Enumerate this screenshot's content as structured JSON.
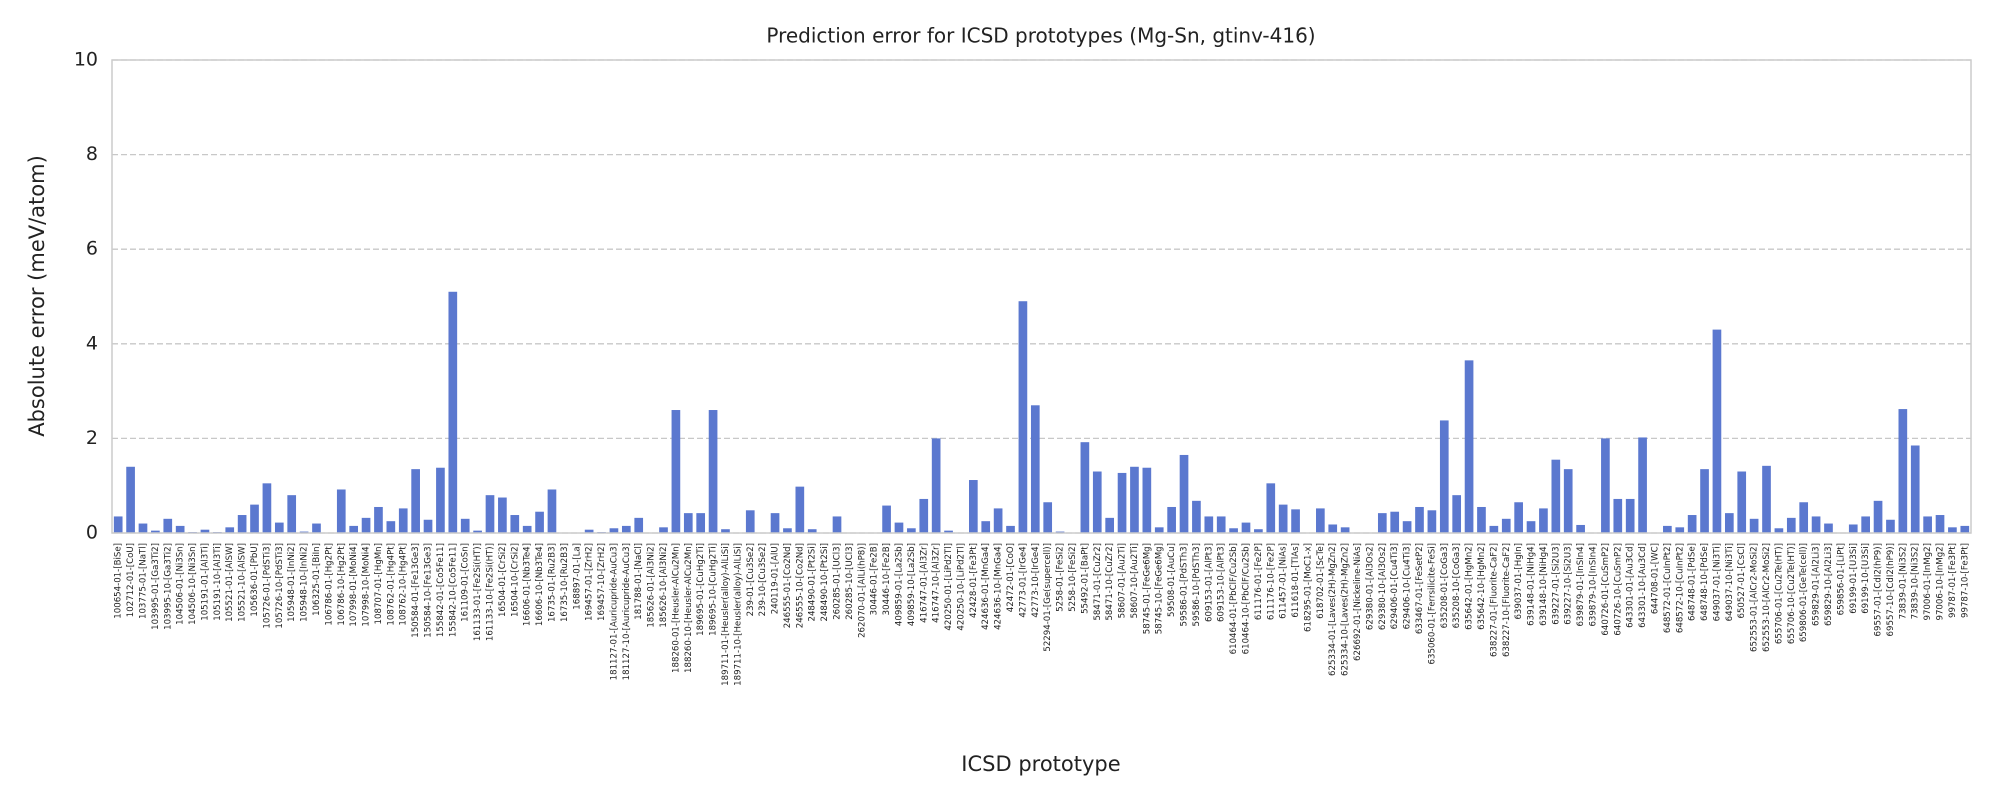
{
  "chart_data": {
    "type": "bar",
    "title": "Prediction error for ICSD prototypes (Mg-Sn, gtinv-416)",
    "xlabel": "ICSD prototype",
    "ylabel": "Absolute error (meV/atom)",
    "color": "#5b78cf",
    "ylim": [
      0,
      10
    ],
    "yticks": [
      0,
      2,
      4,
      6,
      8,
      10
    ],
    "grid": true,
    "categories": [
      "100654-01-[BiSe]",
      "102712-01-[CoU]",
      "103775-01-[NaTl]",
      "103995-01-[Ga3Ti2]",
      "103995-10-[Ga3Ti2]",
      "104506-01-[Ni3Sn]",
      "104506-10-[Ni3Sn]",
      "105191-01-[Al3Ti]",
      "105191-10-[Al3Ti]",
      "105521-01-[AlSW]",
      "105521-10-[AlSW]",
      "105636-01-[PbU]",
      "105726-01-[PdSTi3]",
      "105726-10-[PdSTi3]",
      "105948-01-[InNi2]",
      "105948-10-[InNi2]",
      "106325-01-[BiIn]",
      "106786-01-[Hg2Pt]",
      "106786-10-[Hg2Pt]",
      "107998-01-[MoNi4]",
      "107998-10-[MoNi4]",
      "108707-01-[HgMn]",
      "108762-01-[Hg4Pt]",
      "108762-10-[Hg4Pt]",
      "150584-01-[Fe13Ge3]",
      "150584-10-[Fe13Ge3]",
      "155842-01-[Co5Fe11]",
      "155842-10-[Co5Fe11]",
      "161109-01-[CoSn]",
      "161133-01-[Fe2Si(HT)]",
      "161133-10-[Fe2Si(HT)]",
      "16504-01-[CrSi2]",
      "16504-10-[CrSi2]",
      "16606-01-[Nb3Te4]",
      "16606-10-[Nb3Te4]",
      "16735-01-[Ru2B3]",
      "16735-10-[Ru2B3]",
      "168897-01-[La]",
      "169457-01-[ZrH2]",
      "169457-10-[ZrH2]",
      "181127-01-[Auricupride-AuCu3]",
      "181127-10-[Auricupride-AuCu3]",
      "181788-01-[NaCl]",
      "185626-01-[Al3Ni2]",
      "185626-10-[Al3Ni2]",
      "188260-01-[Heusler-AlCu2Mn]",
      "188260-10-[Heusler-AlCu2Mn]",
      "189695-01-[CuHg2Ti]",
      "189695-10-[CuHg2Ti]",
      "189711-01-[Heusler(alloy)-AlLiSi]",
      "189711-10-[Heusler(alloy)-AlLiSi]",
      "239-01-[Cu3Se2]",
      "239-10-[Cu3Se2]",
      "240119-01-[AlU]",
      "246555-01-[Co2Nd]",
      "246555-10-[Co2Nd]",
      "248490-01-[Pt2Si]",
      "248490-10-[Pt2Si]",
      "260285-01-[UCl3]",
      "260285-10-[UCl3]",
      "262070-01-[AlLi(hP8)]",
      "30446-01-[Fe2B]",
      "30446-10-[Fe2B]",
      "409859-01-[La2Sb]",
      "409859-10-[La2Sb]",
      "416747-01-[Al3Zr]",
      "416747-10-[Al3Zr]",
      "420250-01-[LiPd2Tl]",
      "420250-10-[LiPd2Tl]",
      "42428-01-[Fe3Pt]",
      "424636-01-[MnGa4]",
      "424636-10-[MnGa4]",
      "42472-01-[CoO]",
      "42773-01-[IrGe4]",
      "42773-10-[IrGe4]",
      "52294-01-[Ge(supercell)]",
      "5258-01-[FeSi2]",
      "5258-10-[FeSi2]",
      "55492-01-[BaPt]",
      "58471-01-[CuZr2]",
      "58471-10-[CuZr2]",
      "58607-01-[Au2Ti]",
      "58607-10-[Au2Ti]",
      "58745-01-[FeGe6Mg]",
      "58745-10-[FeGe6Mg]",
      "59508-01-[AuCu]",
      "59586-01-[PdSTh3]",
      "59586-10-[PdSTh3]",
      "609153-01-[AlPt3]",
      "609153-10-[AlPt3]",
      "610464-01-[PbClF/Cu2Sb]",
      "610464-10-[PbClF/Cu2Sb]",
      "611176-01-[Fe2P]",
      "611176-10-[Fe2P]",
      "611457-01-[NiAs]",
      "611618-01-[TlAs]",
      "618295-01-[MoC1-x]",
      "618702-01-[ScTe]",
      "625334-01-[Laves(2H)-MgZn2]",
      "625334-10-[Laves(2H)-MgZn2]",
      "626692-01-[Nickeline-NiAs]",
      "629380-01-[Al3Os2]",
      "629380-10-[Al3Os2]",
      "629406-01-[Cu4Ti3]",
      "629406-10-[Cu4Ti3]",
      "633467-01-[FeSetP2]",
      "635060-01-[Ferrsilicite-FeSi]",
      "635208-01-[CoGa3]",
      "635208-10-[CoGa3]",
      "635642-01-[HgMn2]",
      "635642-10-[HgMn2]",
      "638227-01-[Fluorite-CaF2]",
      "638227-10-[Fluorite-CaF2]",
      "639037-01-[HgIn]",
      "639148-01-[NiHg4]",
      "639148-10-[NiHg4]",
      "639227-01-[Si2U3]",
      "639227-10-[Si2U3]",
      "639879-01-[InSIn4]",
      "639879-10-[InSIn4]",
      "640726-01-[CuSmP2]",
      "640726-10-[CuSmP2]",
      "643301-01-[Au3Cd]",
      "643301-10-[Au3Cd]",
      "644708-01-[WC]",
      "648572-01-[CuInPt2]",
      "648572-10-[CuInPt2]",
      "648748-01-[PdSe]",
      "648748-10-[PdSe]",
      "649037-01-[Ni3Ti]",
      "649037-10-[Ni3Ti]",
      "650527-01-[CsCl]",
      "652553-01-[AlCr2-MoSi2]",
      "652553-10-[AlCr2-MoSi2]",
      "655706-01-[Cu2Te(HT)]",
      "655706-10-[Cu2Te(HT)]",
      "659806-01-[GeTe(cell)]",
      "659829-01-[Al2Li3]",
      "659829-10-[Al2Li3]",
      "659856-01-[LiPt]",
      "69199-01-[U3Si]",
      "69199-10-[U3Si]",
      "69557-01-[CdI2(hP9)]",
      "69557-10-[CdI2(hP9)]",
      "73839-01-[Ni3S2]",
      "73839-10-[Ni3S2]",
      "97006-01-[InMg2]",
      "97006-10-[InMg2]",
      "99787-01-[Fe3Pt]",
      "99787-10-[Fe3Pt]"
    ],
    "values": [
      0.35,
      1.4,
      0.2,
      0.05,
      0.3,
      0.15,
      0.02,
      0.07,
      0.02,
      0.12,
      0.38,
      0.6,
      1.05,
      0.22,
      0.8,
      0.03,
      0.2,
      0.0,
      0.92,
      0.15,
      0.32,
      0.55,
      0.25,
      0.52,
      1.35,
      0.28,
      1.38,
      5.1,
      0.3,
      0.05,
      0.8,
      0.75,
      0.38,
      0.15,
      0.45,
      0.92,
      0.0,
      0.0,
      0.07,
      0.02,
      0.1,
      0.15,
      0.32,
      0.0,
      0.12,
      2.6,
      0.42,
      0.42,
      2.6,
      0.08,
      0.0,
      0.48,
      0.0,
      0.42,
      0.1,
      0.98,
      0.08,
      0.0,
      0.35,
      0.0,
      0.0,
      0.0,
      0.58,
      0.22,
      0.1,
      0.72,
      2.0,
      0.05,
      0.0,
      1.12,
      0.25,
      0.52,
      0.15,
      4.9,
      2.7,
      0.65,
      0.03,
      0.0,
      1.92,
      1.3,
      0.32,
      1.27,
      1.4,
      1.38,
      0.12,
      0.55,
      1.65,
      0.68,
      0.35,
      0.35,
      0.1,
      0.22,
      0.08,
      1.05,
      0.6,
      0.5,
      0.0,
      0.52,
      0.18,
      0.12,
      0.0,
      0.0,
      0.42,
      0.45,
      0.25,
      0.55,
      0.48,
      2.38,
      0.8,
      3.65,
      0.55,
      0.15,
      0.3,
      0.65,
      0.25,
      0.52,
      1.55,
      1.35,
      0.17,
      0.0,
      2.0,
      0.72,
      0.72,
      2.02,
      0.0,
      0.15,
      0.12,
      0.38,
      1.35,
      4.3,
      0.42,
      1.3,
      0.3,
      1.42,
      0.1,
      0.32,
      0.65,
      0.35,
      0.2,
      0.0,
      0.18,
      0.35,
      0.68,
      0.28,
      2.62,
      1.85,
      0.35,
      0.38,
      0.12,
      0.15
    ]
  }
}
